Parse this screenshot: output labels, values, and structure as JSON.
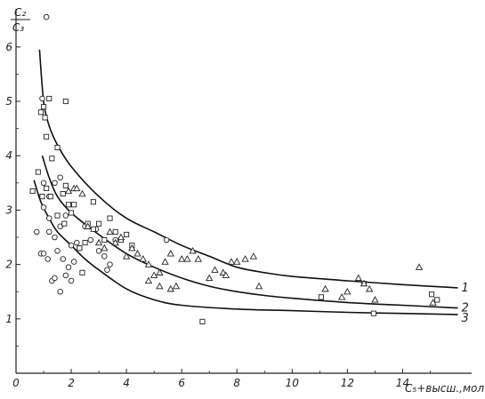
{
  "chart_data": {
    "type": "scatter",
    "title": "",
    "ylabel_num": "C₂",
    "ylabel_den": "C₃",
    "xlabel": "C₅+высш.,мол.%",
    "xlim": [
      0,
      16.5
    ],
    "ylim": [
      0,
      6.7
    ],
    "x_ticks": [
      0,
      2,
      4,
      6,
      8,
      10,
      12,
      14
    ],
    "x_tick_labels": [
      "0",
      "2",
      "4",
      "6",
      "8",
      "10",
      "12",
      "14"
    ],
    "y_ticks": [
      1,
      2,
      3,
      4,
      5,
      6
    ],
    "y_tick_labels": [
      "1",
      "2",
      "3",
      "4",
      "5",
      "6"
    ],
    "grid": false,
    "curves": [
      {
        "label": "1",
        "points": [
          [
            0.85,
            5.95
          ],
          [
            1.0,
            5.0
          ],
          [
            1.2,
            4.55
          ],
          [
            1.5,
            4.2
          ],
          [
            2.0,
            3.8
          ],
          [
            3.0,
            3.25
          ],
          [
            4.0,
            2.85
          ],
          [
            5.0,
            2.6
          ],
          [
            6.0,
            2.35
          ],
          [
            7.0,
            2.15
          ],
          [
            8.0,
            1.95
          ],
          [
            9.0,
            1.85
          ],
          [
            10.0,
            1.78
          ],
          [
            12.0,
            1.7
          ],
          [
            14.0,
            1.63
          ],
          [
            16.0,
            1.57
          ]
        ]
      },
      {
        "label": "2",
        "points": [
          [
            0.95,
            4.0
          ],
          [
            1.2,
            3.6
          ],
          [
            1.5,
            3.25
          ],
          [
            2.0,
            2.95
          ],
          [
            3.0,
            2.55
          ],
          [
            4.0,
            2.2
          ],
          [
            5.0,
            1.95
          ],
          [
            6.0,
            1.75
          ],
          [
            7.0,
            1.6
          ],
          [
            8.0,
            1.5
          ],
          [
            9.0,
            1.43
          ],
          [
            10.0,
            1.38
          ],
          [
            12.0,
            1.3
          ],
          [
            14.0,
            1.25
          ],
          [
            16.0,
            1.2
          ]
        ]
      },
      {
        "label": "3",
        "points": [
          [
            0.65,
            3.55
          ],
          [
            0.9,
            3.15
          ],
          [
            1.2,
            2.85
          ],
          [
            1.5,
            2.6
          ],
          [
            2.0,
            2.35
          ],
          [
            2.5,
            2.1
          ],
          [
            3.0,
            1.9
          ],
          [
            4.0,
            1.55
          ],
          [
            5.0,
            1.35
          ],
          [
            6.0,
            1.25
          ],
          [
            8.0,
            1.18
          ],
          [
            10.0,
            1.15
          ],
          [
            12.0,
            1.12
          ],
          [
            14.0,
            1.1
          ],
          [
            16.0,
            1.08
          ]
        ]
      }
    ],
    "series": [
      {
        "marker": "circle",
        "points": [
          [
            1.1,
            6.55
          ],
          [
            0.75,
            2.6
          ],
          [
            0.9,
            2.2
          ],
          [
            1.0,
            2.2
          ],
          [
            1.15,
            2.1
          ],
          [
            1.3,
            1.7
          ],
          [
            1.4,
            1.75
          ],
          [
            1.6,
            1.5
          ],
          [
            1.5,
            2.25
          ],
          [
            1.7,
            2.1
          ],
          [
            1.8,
            1.8
          ],
          [
            1.9,
            1.95
          ],
          [
            2.0,
            1.7
          ],
          [
            2.1,
            2.05
          ],
          [
            2.2,
            2.4
          ],
          [
            2.3,
            2.3
          ],
          [
            1.2,
            2.6
          ],
          [
            1.4,
            2.5
          ],
          [
            1.6,
            2.7
          ],
          [
            1.8,
            2.9
          ],
          [
            1.2,
            3.25
          ],
          [
            1.4,
            3.5
          ],
          [
            1.6,
            3.6
          ],
          [
            2.5,
            2.7
          ],
          [
            2.7,
            2.45
          ],
          [
            2.9,
            2.65
          ],
          [
            3.0,
            2.25
          ],
          [
            3.2,
            2.15
          ],
          [
            3.4,
            2.0
          ],
          [
            3.6,
            2.45
          ],
          [
            5.45,
            2.45
          ],
          [
            3.3,
            1.9
          ],
          [
            1.0,
            3.05
          ],
          [
            1.2,
            2.85
          ],
          [
            2.0,
            2.35
          ],
          [
            0.95,
            5.05
          ],
          [
            1.0,
            3.5
          ]
        ]
      },
      {
        "marker": "square",
        "points": [
          [
            0.6,
            3.35
          ],
          [
            0.8,
            3.7
          ],
          [
            0.9,
            4.8
          ],
          [
            1.0,
            4.9
          ],
          [
            1.05,
            4.7
          ],
          [
            1.1,
            4.35
          ],
          [
            1.2,
            5.05
          ],
          [
            1.3,
            3.95
          ],
          [
            1.5,
            4.15
          ],
          [
            1.7,
            3.3
          ],
          [
            1.8,
            3.45
          ],
          [
            1.9,
            3.1
          ],
          [
            2.0,
            2.95
          ],
          [
            2.1,
            3.1
          ],
          [
            2.3,
            2.3
          ],
          [
            2.4,
            1.85
          ],
          [
            2.5,
            2.4
          ],
          [
            2.6,
            2.75
          ],
          [
            2.8,
            2.65
          ],
          [
            2.8,
            3.15
          ],
          [
            3.0,
            2.75
          ],
          [
            3.2,
            2.45
          ],
          [
            3.4,
            2.85
          ],
          [
            3.6,
            2.6
          ],
          [
            3.8,
            2.45
          ],
          [
            4.0,
            2.55
          ],
          [
            4.2,
            2.35
          ],
          [
            1.8,
            5.0
          ],
          [
            1.1,
            3.4
          ],
          [
            1.25,
            3.25
          ],
          [
            1.5,
            2.9
          ],
          [
            1.75,
            2.75
          ],
          [
            0.95,
            3.25
          ],
          [
            6.75,
            0.95
          ],
          [
            11.05,
            1.4
          ],
          [
            12.95,
            1.1
          ],
          [
            15.05,
            1.45
          ],
          [
            15.25,
            1.35
          ],
          [
            12.6,
            1.65
          ]
        ]
      },
      {
        "marker": "triangle",
        "points": [
          [
            1.9,
            3.35
          ],
          [
            2.1,
            3.4
          ],
          [
            2.2,
            3.4
          ],
          [
            2.4,
            3.3
          ],
          [
            2.6,
            2.7
          ],
          [
            3.0,
            2.4
          ],
          [
            3.2,
            2.3
          ],
          [
            3.4,
            2.6
          ],
          [
            3.6,
            2.4
          ],
          [
            3.8,
            2.5
          ],
          [
            4.0,
            2.15
          ],
          [
            4.2,
            2.3
          ],
          [
            4.4,
            2.2
          ],
          [
            4.6,
            2.1
          ],
          [
            4.8,
            2.0
          ],
          [
            5.0,
            1.8
          ],
          [
            5.2,
            1.6
          ],
          [
            5.4,
            2.05
          ],
          [
            5.6,
            2.2
          ],
          [
            6.0,
            2.1
          ],
          [
            6.2,
            2.1
          ],
          [
            6.4,
            2.25
          ],
          [
            6.6,
            2.1
          ],
          [
            7.0,
            1.75
          ],
          [
            7.2,
            1.9
          ],
          [
            7.5,
            1.85
          ],
          [
            7.8,
            2.05
          ],
          [
            8.0,
            2.05
          ],
          [
            8.3,
            2.1
          ],
          [
            8.6,
            2.15
          ],
          [
            8.8,
            1.6
          ],
          [
            4.8,
            1.7
          ],
          [
            5.2,
            1.85
          ],
          [
            5.6,
            1.55
          ],
          [
            11.2,
            1.55
          ],
          [
            11.8,
            1.4
          ],
          [
            12.0,
            1.5
          ],
          [
            12.4,
            1.75
          ],
          [
            12.6,
            1.65
          ],
          [
            12.8,
            1.55
          ],
          [
            13.0,
            1.35
          ],
          [
            14.6,
            1.95
          ],
          [
            15.1,
            1.3
          ],
          [
            7.6,
            1.8
          ],
          [
            5.8,
            1.6
          ]
        ]
      }
    ]
  }
}
